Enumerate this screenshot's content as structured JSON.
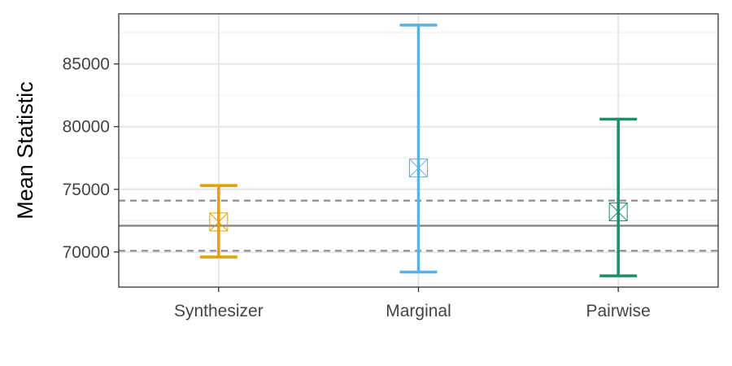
{
  "chart_data": {
    "type": "errorbar",
    "title": "",
    "xlabel": "",
    "ylabel": "Mean Statistic",
    "ylim": [
      67200,
      89000
    ],
    "y_ticks": [
      70000,
      75000,
      80000,
      85000
    ],
    "y_tick_labels": [
      "70000",
      "75000",
      "80000",
      "85000"
    ],
    "categories": [
      "Synthesizer",
      "Marginal",
      "Pairwise"
    ],
    "points": [
      {
        "category": "Synthesizer",
        "mean": 72400,
        "lower": 69600,
        "upper": 75300,
        "color": "#E69F00"
      },
      {
        "category": "Marginal",
        "mean": 76700,
        "lower": 68400,
        "upper": 88100,
        "color": "#56B4E9"
      },
      {
        "category": "Pairwise",
        "mean": 73200,
        "lower": 68100,
        "upper": 80600,
        "color": "#1B8F6A"
      }
    ],
    "reference_lines": [
      {
        "value": 72100,
        "style": "solid",
        "color": "#7f7f7f"
      },
      {
        "value": 74100,
        "style": "dashed",
        "color": "#8c8c8c"
      },
      {
        "value": 70100,
        "style": "dashed",
        "color": "#8c8c8c"
      }
    ],
    "grid": true,
    "legend": "none"
  }
}
